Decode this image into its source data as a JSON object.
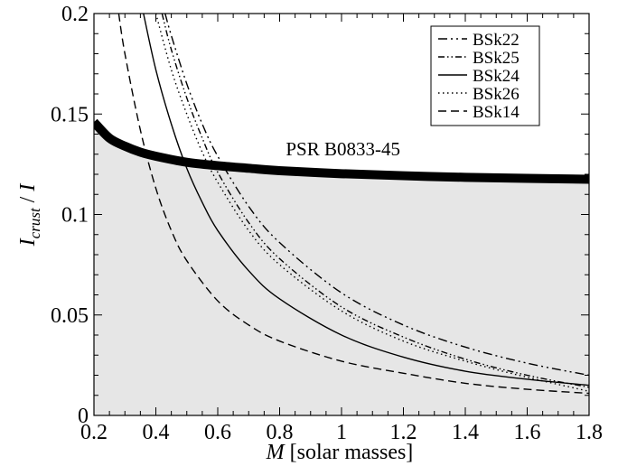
{
  "chart_data": {
    "type": "line",
    "title": "",
    "xlabel": {
      "italic": "M",
      "rest": " [solar masses]"
    },
    "ylabel": {
      "italic_main": "I",
      "subscript": "crust",
      "rest": " / ",
      "italic_end": "I"
    },
    "xlim": [
      0.2,
      1.8
    ],
    "ylim": [
      0,
      0.2
    ],
    "xticks": [
      "0.2",
      "0.4",
      "0.6",
      "0.8",
      "1",
      "1.2",
      "1.4",
      "1.6",
      "1.8"
    ],
    "yticks": [
      "0",
      "0.05",
      "0.1",
      "0.15",
      "0.2"
    ],
    "grid": false,
    "legend_position": "top-right",
    "shaded_region": {
      "description": "area below PSR B0833-45 band",
      "color": "#e6e6e6"
    },
    "annotation": {
      "text": "PSR B0833-45",
      "x": 0.82,
      "y": 0.1295
    },
    "band": {
      "name": "PSR B0833-45",
      "x": [
        0.2,
        0.25,
        0.3,
        0.35,
        0.4,
        0.5,
        0.6,
        0.7,
        0.8,
        1.0,
        1.2,
        1.4,
        1.6,
        1.8
      ],
      "y": [
        0.146,
        0.138,
        0.134,
        0.131,
        0.129,
        0.126,
        0.1243,
        0.123,
        0.1218,
        0.1203,
        0.1193,
        0.1185,
        0.118,
        0.1175
      ]
    },
    "series": [
      {
        "name": "BSk22",
        "style": "dashdotdot",
        "x": [
          0.43,
          0.45,
          0.5,
          0.55,
          0.6,
          0.7,
          0.8,
          1.0,
          1.2,
          1.4,
          1.6,
          1.8
        ],
        "y": [
          0.2,
          0.189,
          0.165,
          0.145,
          0.129,
          0.104,
          0.086,
          0.061,
          0.045,
          0.034,
          0.026,
          0.02
        ]
      },
      {
        "name": "BSk25",
        "style": "dashdotdot-dense",
        "x": [
          0.42,
          0.45,
          0.5,
          0.55,
          0.6,
          0.7,
          0.8,
          1.0,
          1.2,
          1.4,
          1.6,
          1.8
        ],
        "y": [
          0.2,
          0.182,
          0.158,
          0.138,
          0.121,
          0.096,
          0.078,
          0.054,
          0.039,
          0.028,
          0.02,
          0.014
        ]
      },
      {
        "name": "BSk24",
        "style": "solid",
        "x": [
          0.36,
          0.4,
          0.45,
          0.5,
          0.55,
          0.6,
          0.7,
          0.8,
          1.0,
          1.2,
          1.4,
          1.6,
          1.8
        ],
        "y": [
          0.2,
          0.172,
          0.145,
          0.123,
          0.106,
          0.092,
          0.072,
          0.058,
          0.04,
          0.029,
          0.022,
          0.018,
          0.015
        ]
      },
      {
        "name": "BSk26",
        "style": "dotted",
        "x": [
          0.4,
          0.45,
          0.5,
          0.55,
          0.6,
          0.7,
          0.8,
          1.0,
          1.2,
          1.4,
          1.6,
          1.8
        ],
        "y": [
          0.2,
          0.172,
          0.15,
          0.131,
          0.116,
          0.092,
          0.075,
          0.052,
          0.037,
          0.027,
          0.019,
          0.012
        ]
      },
      {
        "name": "BSk14",
        "style": "dashed",
        "x": [
          0.28,
          0.3,
          0.35,
          0.4,
          0.45,
          0.5,
          0.6,
          0.7,
          0.8,
          1.0,
          1.2,
          1.4,
          1.6,
          1.8
        ],
        "y": [
          0.2,
          0.18,
          0.142,
          0.113,
          0.092,
          0.077,
          0.057,
          0.045,
          0.037,
          0.027,
          0.021,
          0.016,
          0.013,
          0.011
        ]
      }
    ]
  }
}
